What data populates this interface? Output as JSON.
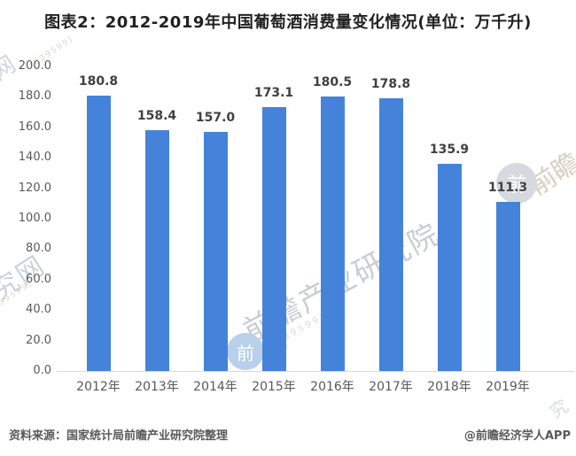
{
  "title": "图表2：2012-2019年中国葡萄酒消费量变化情况(单位：万千升)",
  "footer": {
    "source_note": "资料来源：国家统计局前瞻产业研究院整理",
    "attribution": "@前瞻经济学人APP"
  },
  "watermark": {
    "center": "前瞻产业研究院",
    "left": "研究网",
    "top_left": "究网",
    "right": "前瞻",
    "bottom_right": "究",
    "sub": "(839599)",
    "logo_glyph": "前"
  },
  "chart_data": {
    "type": "bar",
    "title": "图表2：2012-2019年中国葡萄酒消费量变化情况(单位：万千升)",
    "unit": "万千升",
    "categories": [
      "2012年",
      "2013年",
      "2014年",
      "2015年",
      "2016年",
      "2017年",
      "2018年",
      "2019年"
    ],
    "values": [
      180.8,
      158.4,
      157.0,
      173.1,
      180.5,
      178.8,
      135.9,
      111.3
    ],
    "data_labels": [
      "180.8",
      "158.4",
      "157.0",
      "173.1",
      "180.5",
      "178.8",
      "135.9",
      "111.3"
    ],
    "ylim": [
      0,
      200
    ],
    "ytick_step": 20,
    "ytick_labels": [
      "0.0",
      "20.0",
      "40.0",
      "60.0",
      "80.0",
      "100.0",
      "120.0",
      "140.0",
      "160.0",
      "180.0",
      "200.0"
    ],
    "bar_color": "#4483d9",
    "axis_line_color": "#d9d9d9",
    "label_color": "#595959",
    "value_label_color": "#404040",
    "grid": false,
    "legend": null
  }
}
